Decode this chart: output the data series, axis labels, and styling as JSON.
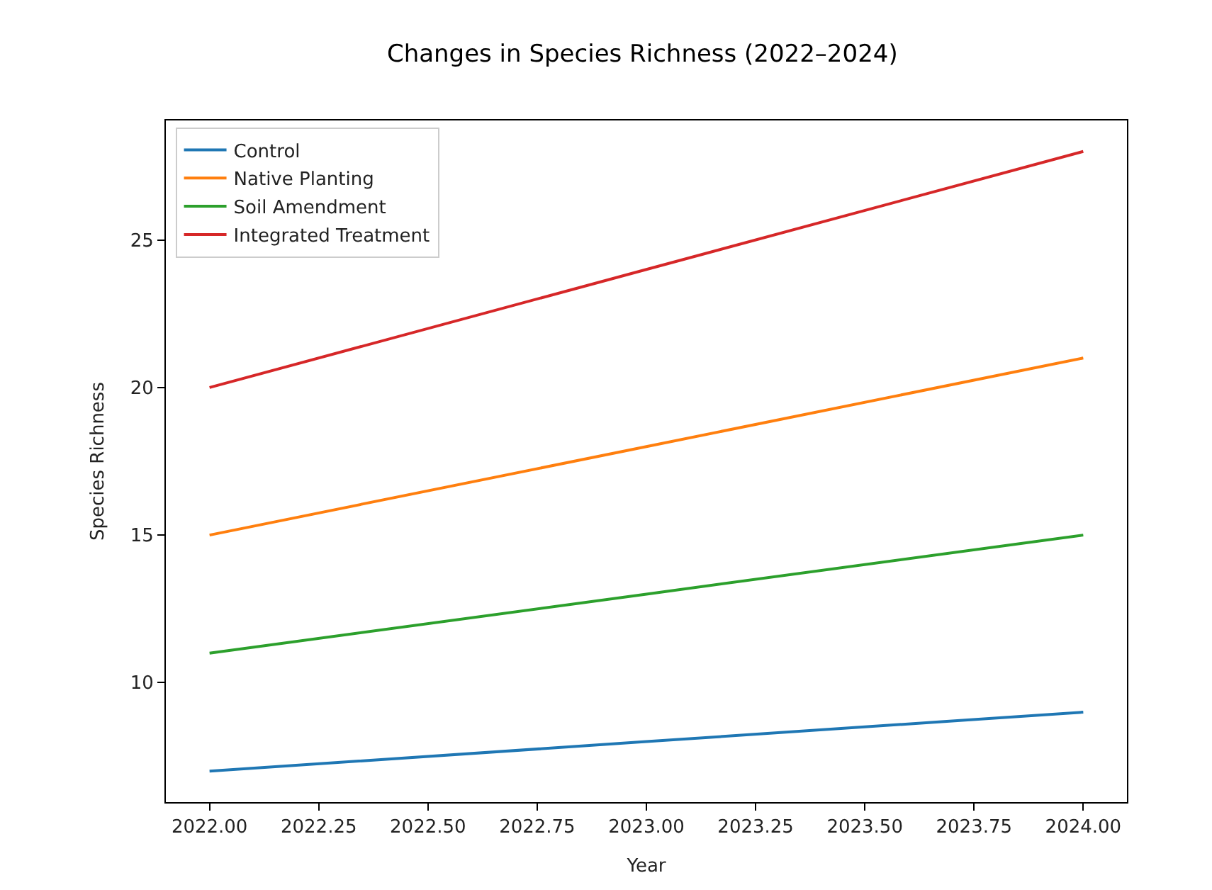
{
  "chart_data": {
    "type": "line",
    "title": "Changes in Species Richness (2022–2024)",
    "xlabel": "Year",
    "ylabel": "Species Richness",
    "x": [
      2022,
      2023,
      2024
    ],
    "series": [
      {
        "name": "Control",
        "color": "#1f77b4",
        "values": [
          7,
          8,
          9
        ]
      },
      {
        "name": "Native Planting",
        "color": "#ff7f0e",
        "values": [
          15,
          18,
          21
        ]
      },
      {
        "name": "Soil Amendment",
        "color": "#2ca02c",
        "values": [
          11,
          13,
          15
        ]
      },
      {
        "name": "Integrated Treatment",
        "color": "#d62728",
        "values": [
          20,
          24,
          28
        ]
      }
    ],
    "xlim": [
      2021.9,
      2024.1
    ],
    "xticks": [
      {
        "value": 2022,
        "label": "2022.00"
      },
      {
        "value": 2022.25,
        "label": "2022.25"
      },
      {
        "value": 2022.5,
        "label": "2022.50"
      },
      {
        "value": 2022.75,
        "label": "2022.75"
      },
      {
        "value": 2023,
        "label": "2023.00"
      },
      {
        "value": 2023.25,
        "label": "2023.25"
      },
      {
        "value": 2023.5,
        "label": "2023.50"
      },
      {
        "value": 2023.75,
        "label": "2023.75"
      },
      {
        "value": 2024,
        "label": "2024.00"
      }
    ],
    "ylim": [
      5.95,
      29.05
    ],
    "yticks": [
      10,
      15,
      20,
      25
    ],
    "legend": "top left",
    "marker": "none",
    "line_style": "solid"
  }
}
